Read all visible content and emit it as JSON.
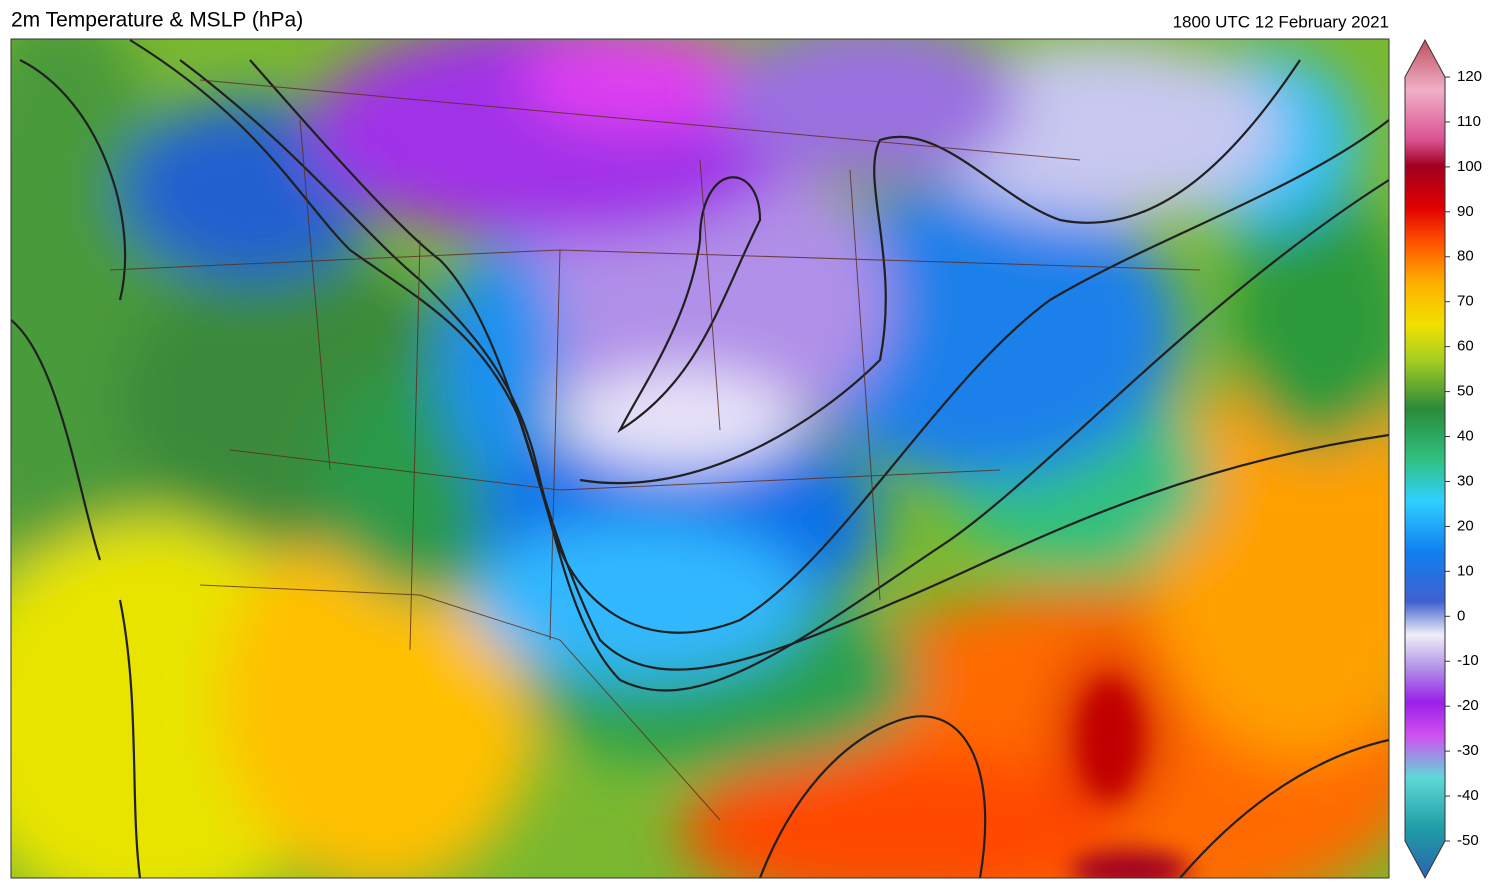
{
  "header": {
    "title": "2m Temperature & MSLP (hPa)",
    "timestamp": "1800 UTC 12 February 2021"
  },
  "colorbar": {
    "range": [
      -50,
      120
    ],
    "ticks": [
      -50,
      -40,
      -30,
      -20,
      -10,
      0,
      10,
      20,
      30,
      40,
      50,
      60,
      70,
      80,
      90,
      100,
      110,
      120
    ]
  }
}
